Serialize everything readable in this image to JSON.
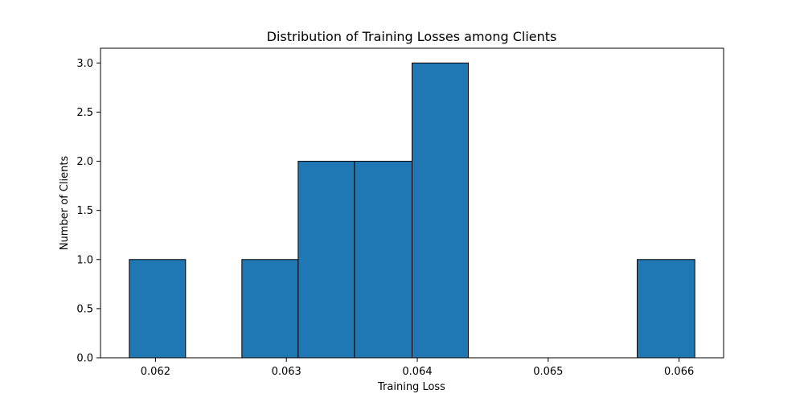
{
  "chart_data": {
    "type": "bar",
    "title": "Distribution of Training Losses among Clients",
    "xlabel": "Training Loss",
    "ylabel": "Number of Clients",
    "bin_edges": [
      0.0618,
      0.06223,
      0.06266,
      0.06309,
      0.06352,
      0.06396,
      0.06439,
      0.06482,
      0.06525,
      0.06568,
      0.06612
    ],
    "values": [
      1,
      0,
      1,
      2,
      2,
      3,
      0,
      0,
      0,
      1
    ],
    "xlim": [
      0.06158,
      0.06634
    ],
    "ylim": [
      0,
      3.15
    ],
    "xticks": [
      0.062,
      0.063,
      0.064,
      0.065,
      0.066
    ],
    "xtick_labels": [
      "0.062",
      "0.063",
      "0.064",
      "0.065",
      "0.066"
    ],
    "yticks": [
      0,
      0.5,
      1,
      1.5,
      2,
      2.5,
      3
    ],
    "ytick_labels": [
      "0.0",
      "0.5",
      "1.0",
      "1.5",
      "2.0",
      "2.5",
      "3.0"
    ],
    "bar_color": "#1f77b4",
    "edge_color": "#000000",
    "grid": false,
    "legend": "none"
  }
}
